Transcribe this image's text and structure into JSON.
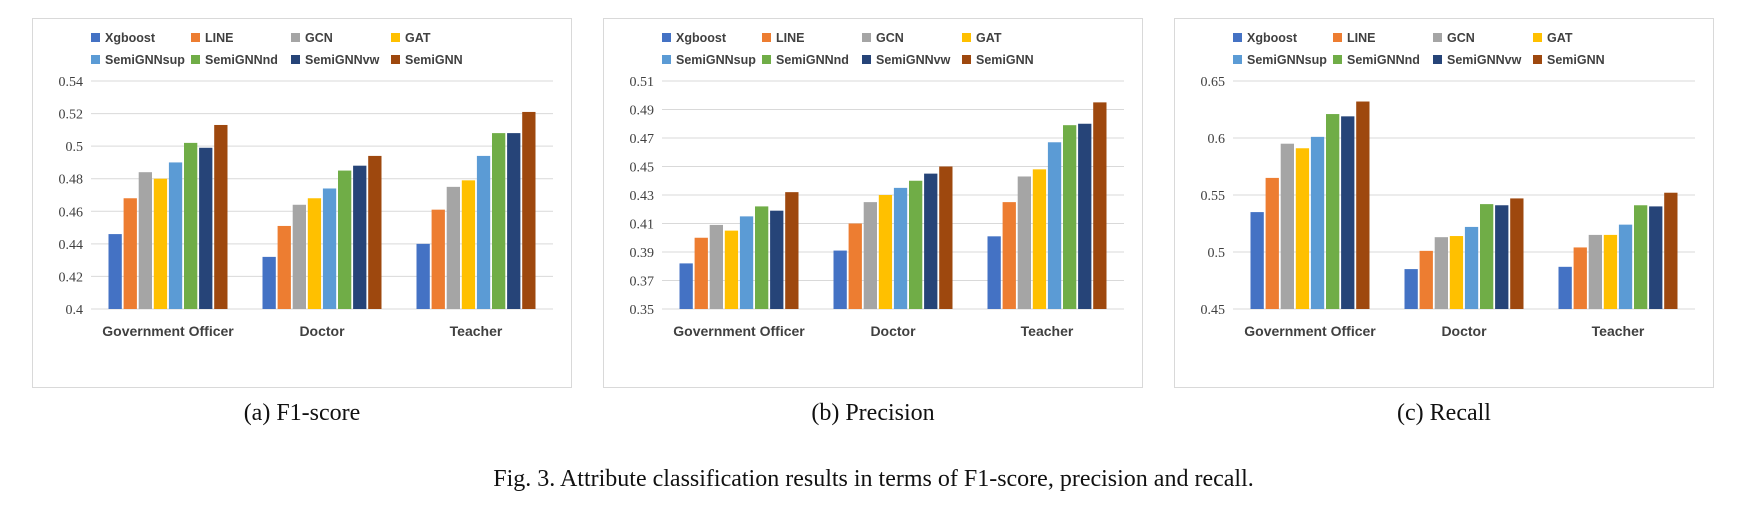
{
  "series_colors": [
    "#4472c4",
    "#ed7d31",
    "#a5a5a5",
    "#ffc000",
    "#5b9bd5",
    "#70ad47",
    "#264478",
    "#9e480e"
  ],
  "figure_caption": "Fig. 3.   Attribute classification results in terms of F1-score, precision and recall.",
  "chart_data": [
    {
      "type": "bar",
      "caption": "(a)  F1-score",
      "categories": [
        "Government Officer",
        "Doctor",
        "Teacher"
      ],
      "ylim": [
        0.4,
        0.54
      ],
      "yticks": [
        "0.4",
        "0.42",
        "0.44",
        "0.46",
        "0.48",
        "0.5",
        "0.52",
        "0.54"
      ],
      "grid": true,
      "legend_position": "top",
      "series": [
        {
          "name": "Xgboost",
          "values": [
            0.446,
            0.432,
            0.44
          ]
        },
        {
          "name": "LINE",
          "values": [
            0.468,
            0.451,
            0.461
          ]
        },
        {
          "name": "GCN",
          "values": [
            0.484,
            0.464,
            0.475
          ]
        },
        {
          "name": "GAT",
          "values": [
            0.48,
            0.468,
            0.479
          ]
        },
        {
          "name": "SemiGNNsup",
          "values": [
            0.49,
            0.474,
            0.494
          ]
        },
        {
          "name": "SemiGNNnd",
          "values": [
            0.502,
            0.485,
            0.508
          ]
        },
        {
          "name": "SemiGNNvw",
          "values": [
            0.499,
            0.488,
            0.508
          ]
        },
        {
          "name": "SemiGNN",
          "values": [
            0.513,
            0.494,
            0.521
          ]
        }
      ]
    },
    {
      "type": "bar",
      "caption": "(b)  Precision",
      "categories": [
        "Government Officer",
        "Doctor",
        "Teacher"
      ],
      "ylim": [
        0.35,
        0.51
      ],
      "yticks": [
        "0.35",
        "0.37",
        "0.39",
        "0.41",
        "0.43",
        "0.45",
        "0.47",
        "0.49",
        "0.51"
      ],
      "grid": true,
      "legend_position": "top",
      "series": [
        {
          "name": "Xgboost",
          "values": [
            0.382,
            0.391,
            0.401
          ]
        },
        {
          "name": "LINE",
          "values": [
            0.4,
            0.41,
            0.425
          ]
        },
        {
          "name": "GCN",
          "values": [
            0.409,
            0.425,
            0.443
          ]
        },
        {
          "name": "GAT",
          "values": [
            0.405,
            0.43,
            0.448
          ]
        },
        {
          "name": "SemiGNNsup",
          "values": [
            0.415,
            0.435,
            0.467
          ]
        },
        {
          "name": "SemiGNNnd",
          "values": [
            0.422,
            0.44,
            0.479
          ]
        },
        {
          "name": "SemiGNNvw",
          "values": [
            0.419,
            0.445,
            0.48
          ]
        },
        {
          "name": "SemiGNN",
          "values": [
            0.432,
            0.45,
            0.495
          ]
        }
      ]
    },
    {
      "type": "bar",
      "caption": "(c)  Recall",
      "categories": [
        "Government Officer",
        "Doctor",
        "Teacher"
      ],
      "ylim": [
        0.45,
        0.65
      ],
      "yticks": [
        "0.45",
        "0.5",
        "0.55",
        "0.6",
        "0.65"
      ],
      "grid": true,
      "legend_position": "top",
      "series": [
        {
          "name": "Xgboost",
          "values": [
            0.535,
            0.485,
            0.487
          ]
        },
        {
          "name": "LINE",
          "values": [
            0.565,
            0.501,
            0.504
          ]
        },
        {
          "name": "GCN",
          "values": [
            0.595,
            0.513,
            0.515
          ]
        },
        {
          "name": "GAT",
          "values": [
            0.591,
            0.514,
            0.515
          ]
        },
        {
          "name": "SemiGNNsup",
          "values": [
            0.601,
            0.522,
            0.524
          ]
        },
        {
          "name": "SemiGNNnd",
          "values": [
            0.621,
            0.542,
            0.541
          ]
        },
        {
          "name": "SemiGNNvw",
          "values": [
            0.619,
            0.541,
            0.54
          ]
        },
        {
          "name": "SemiGNN",
          "values": [
            0.632,
            0.547,
            0.552
          ]
        }
      ]
    }
  ]
}
